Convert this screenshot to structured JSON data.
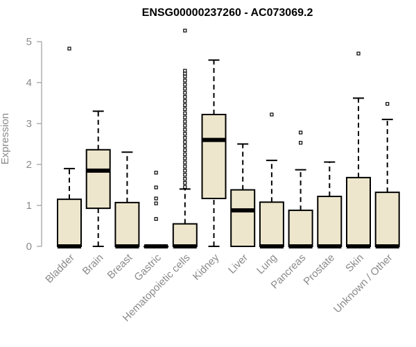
{
  "chart_data": {
    "type": "boxplot",
    "title": "ENSG00000237260 - AC073069.2",
    "ylabel": "Expression",
    "ylim": [
      0,
      5.3
    ],
    "yticks": [
      0,
      1,
      2,
      3,
      4,
      5
    ],
    "box_fill": "#ede6cc",
    "categories": [
      "Bladder",
      "Brain",
      "Breast",
      "Gastric",
      "Hematopoietic cells",
      "Kidney",
      "Liver",
      "Lung",
      "Pancreas",
      "Prostate",
      "Skin",
      "Unknown / Other"
    ],
    "boxes": [
      {
        "min": 0,
        "q1": 0,
        "median": 0,
        "q3": 1.15,
        "max": 1.9,
        "outliers": [
          4.83
        ]
      },
      {
        "min": 0,
        "q1": 0.93,
        "median": 1.85,
        "q3": 2.36,
        "max": 3.3,
        "outliers": []
      },
      {
        "min": 0,
        "q1": 0,
        "median": 0,
        "q3": 1.07,
        "max": 2.3,
        "outliers": []
      },
      {
        "min": 0,
        "q1": 0,
        "median": 0,
        "q3": 0,
        "max": 0,
        "outliers": [
          0.67,
          1.05,
          1.17,
          1.44,
          1.8
        ]
      },
      {
        "min": 0,
        "q1": 0,
        "median": 0,
        "q3": 0.55,
        "max": 1.4,
        "outliers": [
          1.45,
          1.55,
          1.65,
          1.75,
          1.85,
          1.95,
          2.05,
          2.15,
          2.25,
          2.35,
          2.45,
          2.55,
          2.65,
          2.75,
          2.85,
          2.95,
          3.05,
          3.15,
          3.25,
          3.35,
          3.45,
          3.55,
          3.65,
          3.75,
          3.85,
          3.95,
          4.05,
          4.15,
          4.22,
          4.29,
          5.27
        ]
      },
      {
        "min": 0,
        "q1": 1.17,
        "median": 2.6,
        "q3": 3.22,
        "max": 4.55,
        "outliers": []
      },
      {
        "min": 0,
        "q1": 0,
        "median": 0.88,
        "q3": 1.38,
        "max": 2.5,
        "outliers": []
      },
      {
        "min": 0,
        "q1": 0,
        "median": 0,
        "q3": 1.08,
        "max": 2.1,
        "outliers": [
          3.22
        ]
      },
      {
        "min": 0,
        "q1": 0,
        "median": 0,
        "q3": 0.88,
        "max": 1.87,
        "outliers": [
          2.53,
          2.78
        ]
      },
      {
        "min": 0,
        "q1": 0,
        "median": 0,
        "q3": 1.22,
        "max": 2.06,
        "outliers": []
      },
      {
        "min": 0,
        "q1": 0,
        "median": 0,
        "q3": 1.68,
        "max": 3.62,
        "outliers": [
          4.71
        ]
      },
      {
        "min": 0,
        "q1": 0,
        "median": 0,
        "q3": 1.32,
        "max": 3.1,
        "outliers": [
          3.48
        ]
      }
    ]
  }
}
